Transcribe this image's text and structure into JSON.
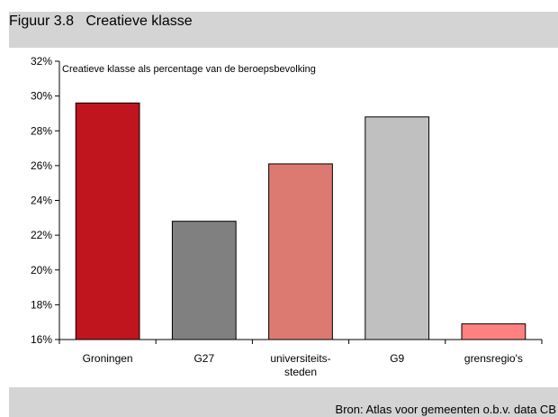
{
  "figure": {
    "title": "Figuur 3.8   Creatieve klasse",
    "source": "Bron: Atlas voor gemeenten o.b.v. data CB"
  },
  "chart_data": {
    "type": "bar",
    "title": "Creatieve klasse als percentage van de beroepsbevolking",
    "categories": [
      [
        "Groningen"
      ],
      [
        "G27"
      ],
      [
        "universiteits-",
        "steden"
      ],
      [
        "G9"
      ],
      [
        "grensregio's"
      ]
    ],
    "values": [
      29.6,
      22.8,
      26.1,
      28.8,
      16.9
    ],
    "colors": [
      "#c0141e",
      "#808080",
      "#dc7a72",
      "#c0c0c0",
      "#ff8080"
    ],
    "ylim": [
      16,
      32
    ],
    "yticks": [
      16,
      18,
      20,
      22,
      24,
      26,
      28,
      30,
      32
    ],
    "ytick_labels": [
      "16%",
      "18%",
      "20%",
      "22%",
      "24%",
      "26%",
      "28%",
      "30%",
      "32%"
    ],
    "grid": false,
    "legend": "none"
  }
}
